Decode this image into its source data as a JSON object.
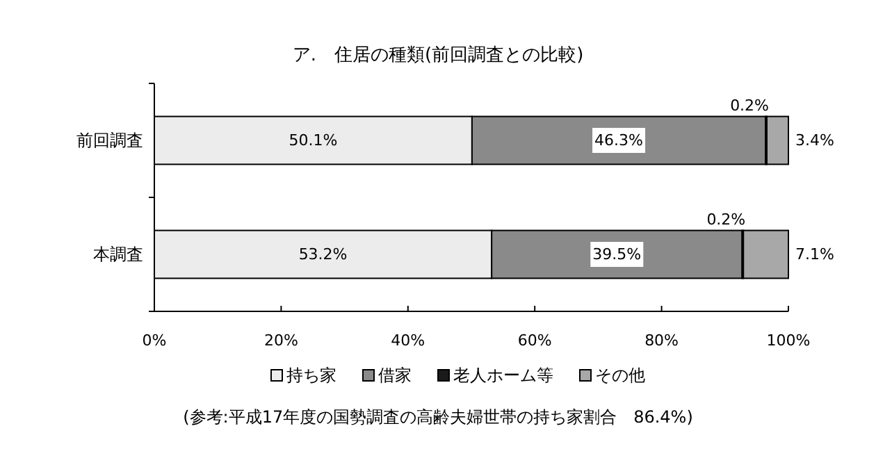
{
  "chart_data": {
    "type": "bar",
    "orientation": "horizontal",
    "stacked": true,
    "title": "ア.　住居の種類(前回調査との比較)",
    "categories": [
      "前回調査",
      "本調査"
    ],
    "series": [
      {
        "name": "持ち家",
        "color": "#ececec",
        "values": [
          50.1,
          53.2
        ],
        "value_labels": [
          "50.1%",
          "53.2%"
        ]
      },
      {
        "name": "借家",
        "color": "#8a8a8a",
        "values": [
          46.3,
          39.5
        ],
        "value_labels": [
          "46.3%",
          "39.5%"
        ]
      },
      {
        "name": "老人ホーム等",
        "color": "#1a1a1a",
        "values": [
          0.2,
          0.2
        ],
        "value_labels": [
          "0.2%",
          "0.2%"
        ]
      },
      {
        "name": "その他",
        "color": "#a8a8a8",
        "values": [
          3.4,
          7.1
        ],
        "value_labels": [
          "3.4%",
          "7.1%"
        ]
      }
    ],
    "xlim": [
      0,
      100
    ],
    "xticks": [
      {
        "value": 0,
        "label": "0%"
      },
      {
        "value": 20,
        "label": "20%"
      },
      {
        "value": 40,
        "label": "40%"
      },
      {
        "value": 60,
        "label": "60%"
      },
      {
        "value": 80,
        "label": "80%"
      },
      {
        "value": 100,
        "label": "100%"
      }
    ],
    "legend": "bottom",
    "annotations": [
      "(参考:平成17年度の国勢調査の高齢夫婦世帯の持ち家割合　86.4%)"
    ]
  }
}
